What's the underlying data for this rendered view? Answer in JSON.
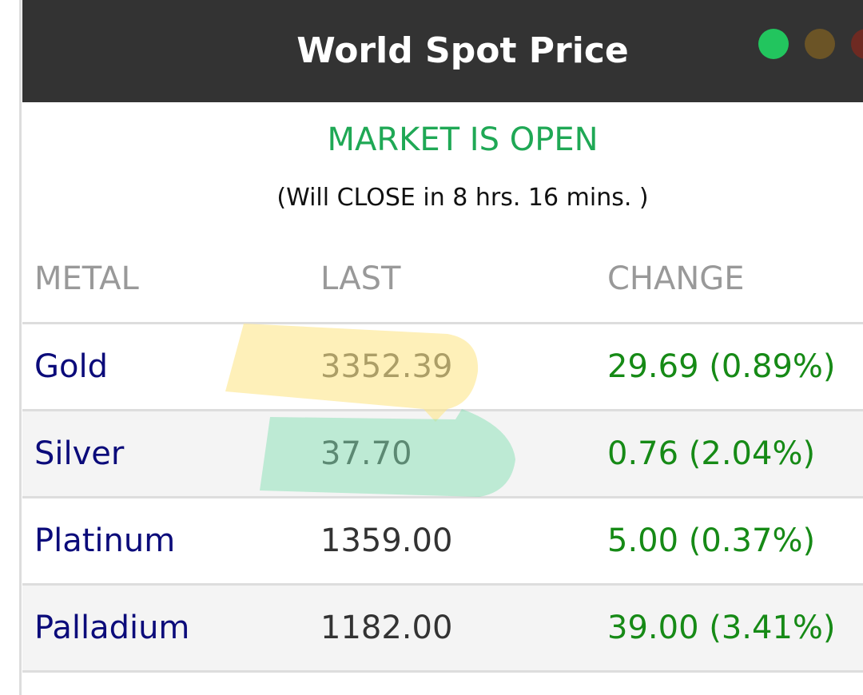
{
  "header": {
    "title": "World Spot Price"
  },
  "status": {
    "label": "MARKET IS OPEN",
    "note": "(Will CLOSE in 8 hrs. 16 mins. )"
  },
  "table": {
    "columns": [
      "METAL",
      "LAST",
      "CHANGE"
    ],
    "rows": [
      [
        "Gold",
        "3352.39",
        "29.69 (0.89%)"
      ],
      [
        "Silver",
        "37.70",
        "0.76 (2.04%)"
      ],
      [
        "Platinum",
        "1359.00",
        "5.00 (0.37%)"
      ],
      [
        "Palladium",
        "1182.00",
        "39.00 (3.41%)"
      ]
    ]
  }
}
